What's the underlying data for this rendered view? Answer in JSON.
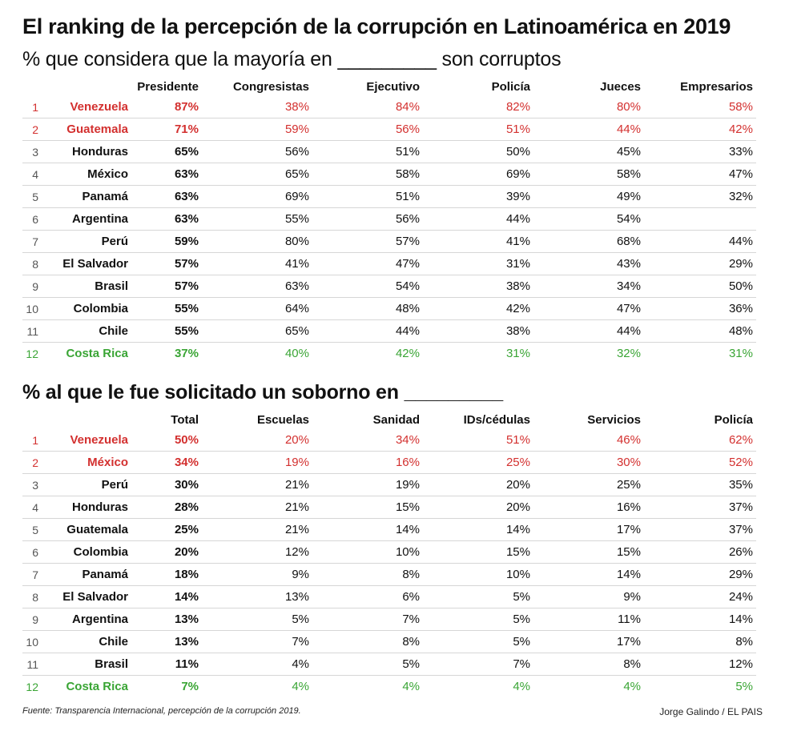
{
  "title": "El ranking de la percepción de la corrupción en Latinoamérica en 2019",
  "colors": {
    "worst": "#d3302f",
    "best": "#3aa535",
    "text": "#111111",
    "divider": "#d6d6d6"
  },
  "chart_data": [
    {
      "type": "table",
      "title": "% que considera que la mayoría en _________ son corruptos",
      "columns": [
        "",
        "",
        "Presidente",
        "Congresistas",
        "Ejecutivo",
        "Policía",
        "Jueces",
        "Empresarios"
      ],
      "rows": [
        {
          "rank": "1",
          "country": "Venezuela",
          "highlight": "red",
          "values": [
            "87%",
            "38%",
            "84%",
            "82%",
            "80%",
            "58%"
          ]
        },
        {
          "rank": "2",
          "country": "Guatemala",
          "highlight": "red",
          "values": [
            "71%",
            "59%",
            "56%",
            "51%",
            "44%",
            "42%"
          ]
        },
        {
          "rank": "3",
          "country": "Honduras",
          "highlight": "",
          "values": [
            "65%",
            "56%",
            "51%",
            "50%",
            "45%",
            "33%"
          ]
        },
        {
          "rank": "4",
          "country": "México",
          "highlight": "",
          "values": [
            "63%",
            "65%",
            "58%",
            "69%",
            "58%",
            "47%"
          ]
        },
        {
          "rank": "5",
          "country": "Panamá",
          "highlight": "",
          "values": [
            "63%",
            "69%",
            "51%",
            "39%",
            "49%",
            "32%"
          ]
        },
        {
          "rank": "6",
          "country": "Argentina",
          "highlight": "",
          "values": [
            "63%",
            "55%",
            "56%",
            "44%",
            "54%",
            ""
          ]
        },
        {
          "rank": "7",
          "country": "Perú",
          "highlight": "",
          "values": [
            "59%",
            "80%",
            "57%",
            "41%",
            "68%",
            "44%"
          ]
        },
        {
          "rank": "8",
          "country": "El Salvador",
          "highlight": "",
          "values": [
            "57%",
            "41%",
            "47%",
            "31%",
            "43%",
            "29%"
          ]
        },
        {
          "rank": "9",
          "country": "Brasil",
          "highlight": "",
          "values": [
            "57%",
            "63%",
            "54%",
            "38%",
            "34%",
            "50%"
          ]
        },
        {
          "rank": "10",
          "country": "Colombia",
          "highlight": "",
          "values": [
            "55%",
            "64%",
            "48%",
            "42%",
            "47%",
            "36%"
          ]
        },
        {
          "rank": "11",
          "country": "Chile",
          "highlight": "",
          "values": [
            "55%",
            "65%",
            "44%",
            "38%",
            "44%",
            "48%"
          ]
        },
        {
          "rank": "12",
          "country": "Costa Rica",
          "highlight": "green",
          "values": [
            "37%",
            "40%",
            "42%",
            "31%",
            "32%",
            "31%"
          ]
        }
      ]
    },
    {
      "type": "table",
      "title": "% al que le fue solicitado un soborno en _________",
      "columns": [
        "",
        "",
        "Total",
        "Escuelas",
        "Sanidad",
        "IDs/cédulas",
        "Servicios",
        "Policía"
      ],
      "rows": [
        {
          "rank": "1",
          "country": "Venezuela",
          "highlight": "red",
          "values": [
            "50%",
            "20%",
            "34%",
            "51%",
            "46%",
            "62%"
          ]
        },
        {
          "rank": "2",
          "country": "México",
          "highlight": "red",
          "values": [
            "34%",
            "19%",
            "16%",
            "25%",
            "30%",
            "52%"
          ]
        },
        {
          "rank": "3",
          "country": "Perú",
          "highlight": "",
          "values": [
            "30%",
            "21%",
            "19%",
            "20%",
            "25%",
            "35%"
          ]
        },
        {
          "rank": "4",
          "country": "Honduras",
          "highlight": "",
          "values": [
            "28%",
            "21%",
            "15%",
            "20%",
            "16%",
            "37%"
          ]
        },
        {
          "rank": "5",
          "country": "Guatemala",
          "highlight": "",
          "values": [
            "25%",
            "21%",
            "14%",
            "14%",
            "17%",
            "37%"
          ]
        },
        {
          "rank": "6",
          "country": "Colombia",
          "highlight": "",
          "values": [
            "20%",
            "12%",
            "10%",
            "15%",
            "15%",
            "26%"
          ]
        },
        {
          "rank": "7",
          "country": "Panamá",
          "highlight": "",
          "values": [
            "18%",
            "9%",
            "8%",
            "10%",
            "14%",
            "29%"
          ]
        },
        {
          "rank": "8",
          "country": "El Salvador",
          "highlight": "",
          "values": [
            "14%",
            "13%",
            "6%",
            "5%",
            "9%",
            "24%"
          ]
        },
        {
          "rank": "9",
          "country": "Argentina",
          "highlight": "",
          "values": [
            "13%",
            "5%",
            "7%",
            "5%",
            "11%",
            "14%"
          ]
        },
        {
          "rank": "10",
          "country": "Chile",
          "highlight": "",
          "values": [
            "13%",
            "7%",
            "8%",
            "5%",
            "17%",
            "8%"
          ]
        },
        {
          "rank": "11",
          "country": "Brasil",
          "highlight": "",
          "values": [
            "11%",
            "4%",
            "5%",
            "7%",
            "8%",
            "12%"
          ]
        },
        {
          "rank": "12",
          "country": "Costa Rica",
          "highlight": "green",
          "values": [
            "7%",
            "4%",
            "4%",
            "4%",
            "4%",
            "5%"
          ]
        }
      ]
    }
  ],
  "footer": {
    "source": "Fuente: Transparencia Internacional, percepción de la corrupción 2019.",
    "credit": "Jorge Galindo / EL PAIS"
  }
}
